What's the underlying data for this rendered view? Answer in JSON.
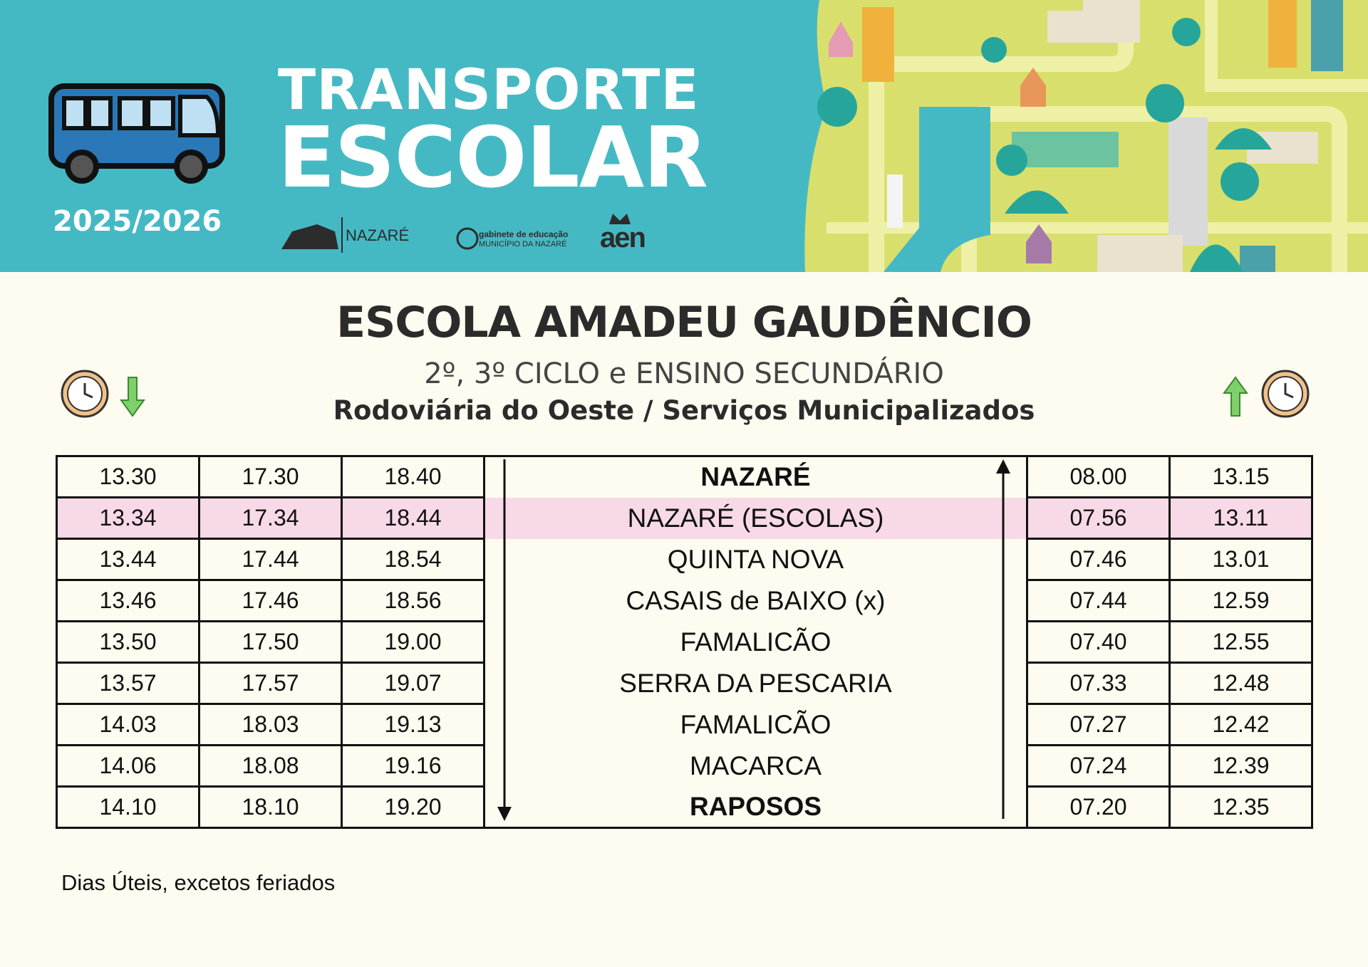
{
  "header": {
    "title_line1": "TRANSPORTE",
    "title_line2": "ESCOLAR",
    "year": "2025/2026",
    "logos": {
      "nazare": "NAZARÉ",
      "gabinete_line1": "gabinete de educação",
      "gabinete_line2": "MUNICÍPIO DA NAZARÉ",
      "aen": "aen"
    }
  },
  "school": "ESCOLA AMADEU GAUDÊNCIO",
  "subtitle": "2º, 3º CICLO e ENSINO SECUNDÁRIO",
  "operator": "Rodoviária do Oeste / Serviços Municipalizados",
  "table": {
    "rows": [
      {
        "outbound": [
          "13.30",
          "17.30",
          "18.40"
        ],
        "stop": "NAZARÉ",
        "return": [
          "08.00",
          "13.15"
        ],
        "bold": true
      },
      {
        "outbound": [
          "13.34",
          "17.34",
          "18.44"
        ],
        "stop": "NAZARÉ (ESCOLAS)",
        "return": [
          "07.56",
          "13.11"
        ],
        "highlight": true
      },
      {
        "outbound": [
          "13.44",
          "17.44",
          "18.54"
        ],
        "stop": "QUINTA NOVA",
        "return": [
          "07.46",
          "13.01"
        ]
      },
      {
        "outbound": [
          "13.46",
          "17.46",
          "18.56"
        ],
        "stop": "CASAIS de BAIXO (x)",
        "return": [
          "07.44",
          "12.59"
        ]
      },
      {
        "outbound": [
          "13.50",
          "17.50",
          "19.00"
        ],
        "stop": "FAMALICÃO",
        "return": [
          "07.40",
          "12.55"
        ]
      },
      {
        "outbound": [
          "13.57",
          "17.57",
          "19.07"
        ],
        "stop": "SERRA DA PESCARIA",
        "return": [
          "07.33",
          "12.48"
        ]
      },
      {
        "outbound": [
          "14.03",
          "18.03",
          "19.13"
        ],
        "stop": "FAMALICÃO",
        "return": [
          "07.27",
          "12.42"
        ]
      },
      {
        "outbound": [
          "14.06",
          "18.08",
          "19.16"
        ],
        "stop": "MACARCA",
        "return": [
          "07.24",
          "12.39"
        ]
      },
      {
        "outbound": [
          "14.10",
          "18.10",
          "19.20"
        ],
        "stop": "RAPOSOS",
        "return": [
          "07.20",
          "12.35"
        ],
        "bold": true
      }
    ]
  },
  "footnote": "Dias Úteis, excetos feriados"
}
